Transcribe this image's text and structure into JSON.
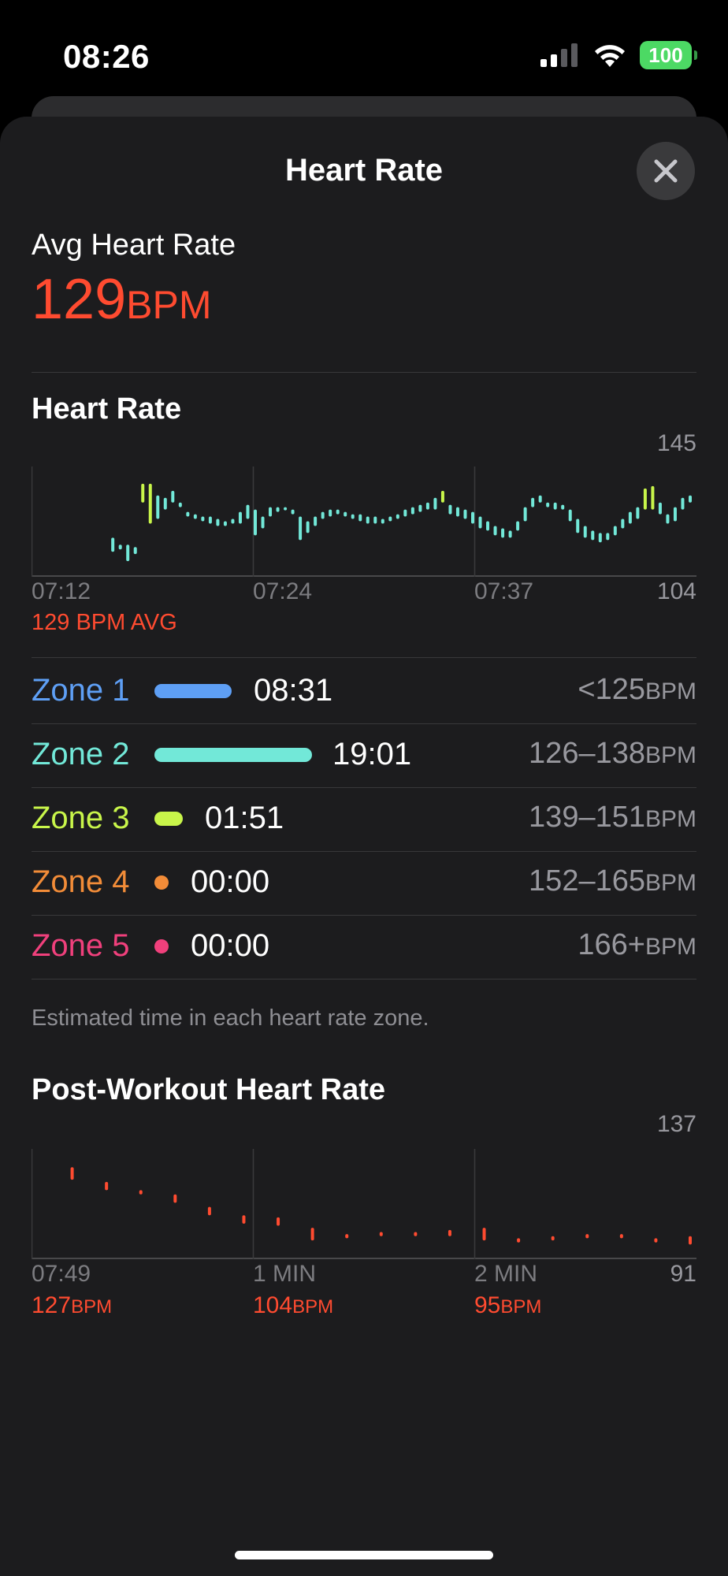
{
  "status": {
    "time": "08:26",
    "battery": "100",
    "signal_icon": "cellular-signal-icon",
    "wifi_icon": "wifi-icon"
  },
  "sheet": {
    "title": "Heart Rate",
    "close_icon": "close-icon"
  },
  "summary": {
    "label": "Avg Heart Rate",
    "value": "129",
    "unit": "BPM"
  },
  "heart_rate_section": {
    "title": "Heart Rate",
    "avg_caption": "129 BPM AVG"
  },
  "zones": {
    "items": [
      {
        "name": "Zone 1",
        "time": "08:31",
        "range": "<125",
        "unit": "BPM",
        "color": "#5e9ff5",
        "bar_fraction": 0.45
      },
      {
        "name": "Zone 2",
        "time": "19:01",
        "range": "126–138",
        "unit": "BPM",
        "color": "#72e8d8",
        "bar_fraction": 1.0
      },
      {
        "name": "Zone 3",
        "time": "01:51",
        "range": "139–151",
        "unit": "BPM",
        "color": "#c8f54a",
        "bar_fraction": 0.1
      },
      {
        "name": "Zone 4",
        "time": "00:00",
        "range": "152–165",
        "unit": "BPM",
        "color": "#f28c38",
        "bar_fraction": 0
      },
      {
        "name": "Zone 5",
        "time": "00:00",
        "range": "166+",
        "unit": "BPM",
        "color": "#f0407c",
        "bar_fraction": 0
      }
    ],
    "footnote": "Estimated time in each heart rate zone."
  },
  "post_workout": {
    "title": "Post-Workout Heart Rate",
    "values": [
      {
        "value": "127",
        "unit": "BPM"
      },
      {
        "value": "104",
        "unit": "BPM"
      },
      {
        "value": "95",
        "unit": "BPM"
      }
    ]
  },
  "chart_data": [
    {
      "type": "bar",
      "x_ticks": [
        "07:12",
        "07:24",
        "07:37"
      ],
      "ylim": [
        104,
        145
      ],
      "y_labels": [
        "145",
        "104"
      ],
      "range_bars": [
        {
          "x": 0.2,
          "low": 112,
          "high": 118,
          "color": "#72e8d8"
        },
        {
          "x": 0.22,
          "low": 113,
          "high": 115,
          "color": "#72e8d8"
        },
        {
          "x": 0.24,
          "low": 108,
          "high": 115,
          "color": "#72e8d8"
        },
        {
          "x": 0.26,
          "low": 111,
          "high": 114,
          "color": "#72e8d8"
        },
        {
          "x": 0.28,
          "low": 133,
          "high": 141,
          "color": "#c8f54a"
        },
        {
          "x": 0.3,
          "low": 124,
          "high": 141,
          "color": "#c8f54a"
        },
        {
          "x": 0.32,
          "low": 126,
          "high": 136,
          "color": "#72e8d8"
        },
        {
          "x": 0.34,
          "low": 130,
          "high": 135,
          "color": "#72e8d8"
        },
        {
          "x": 0.36,
          "low": 133,
          "high": 138,
          "color": "#72e8d8"
        },
        {
          "x": 0.38,
          "low": 131,
          "high": 133,
          "color": "#72e8d8"
        },
        {
          "x": 0.4,
          "low": 127,
          "high": 129,
          "color": "#72e8d8"
        },
        {
          "x": 0.42,
          "low": 126,
          "high": 128,
          "color": "#72e8d8"
        },
        {
          "x": 0.44,
          "low": 125,
          "high": 127,
          "color": "#72e8d8"
        },
        {
          "x": 0.46,
          "low": 124,
          "high": 127,
          "color": "#72e8d8"
        },
        {
          "x": 0.48,
          "low": 123,
          "high": 126,
          "color": "#72e8d8"
        },
        {
          "x": 0.5,
          "low": 123,
          "high": 125,
          "color": "#72e8d8"
        },
        {
          "x": 0.52,
          "low": 124,
          "high": 126,
          "color": "#72e8d8"
        },
        {
          "x": 0.54,
          "low": 124,
          "high": 129,
          "color": "#72e8d8"
        },
        {
          "x": 0.56,
          "low": 126,
          "high": 132,
          "color": "#72e8d8"
        },
        {
          "x": 0.58,
          "low": 119,
          "high": 130,
          "color": "#72e8d8"
        },
        {
          "x": 0.6,
          "low": 122,
          "high": 127,
          "color": "#72e8d8"
        },
        {
          "x": 0.62,
          "low": 127,
          "high": 131,
          "color": "#72e8d8"
        },
        {
          "x": 0.64,
          "low": 129,
          "high": 131,
          "color": "#72e8d8"
        },
        {
          "x": 0.66,
          "low": 130,
          "high": 131,
          "color": "#72e8d8"
        },
        {
          "x": 0.68,
          "low": 128,
          "high": 130,
          "color": "#72e8d8"
        },
        {
          "x": 0.7,
          "low": 117,
          "high": 127,
          "color": "#72e8d8"
        },
        {
          "x": 0.72,
          "low": 120,
          "high": 125,
          "color": "#72e8d8"
        },
        {
          "x": 0.74,
          "low": 123,
          "high": 127,
          "color": "#72e8d8"
        },
        {
          "x": 0.76,
          "low": 126,
          "high": 129,
          "color": "#72e8d8"
        },
        {
          "x": 0.78,
          "low": 127,
          "high": 130,
          "color": "#72e8d8"
        },
        {
          "x": 0.8,
          "low": 128,
          "high": 130,
          "color": "#72e8d8"
        },
        {
          "x": 0.82,
          "low": 127,
          "high": 129,
          "color": "#72e8d8"
        },
        {
          "x": 0.84,
          "low": 126,
          "high": 128,
          "color": "#72e8d8"
        },
        {
          "x": 0.86,
          "low": 125,
          "high": 128,
          "color": "#72e8d8"
        },
        {
          "x": 0.88,
          "low": 124,
          "high": 127,
          "color": "#72e8d8"
        },
        {
          "x": 0.9,
          "low": 124,
          "high": 127,
          "color": "#72e8d8"
        },
        {
          "x": 0.92,
          "low": 124,
          "high": 126,
          "color": "#72e8d8"
        },
        {
          "x": 0.94,
          "low": 125,
          "high": 127,
          "color": "#72e8d8"
        },
        {
          "x": 0.96,
          "low": 126,
          "high": 128,
          "color": "#72e8d8"
        },
        {
          "x": 0.98,
          "low": 127,
          "high": 130,
          "color": "#72e8d8"
        },
        {
          "x": 1.0,
          "low": 128,
          "high": 131,
          "color": "#72e8d8"
        },
        {
          "x": 1.02,
          "low": 129,
          "high": 132,
          "color": "#72e8d8"
        },
        {
          "x": 1.04,
          "low": 130,
          "high": 133,
          "color": "#72e8d8"
        },
        {
          "x": 1.06,
          "low": 130,
          "high": 135,
          "color": "#72e8d8"
        },
        {
          "x": 1.08,
          "low": 133,
          "high": 138,
          "color": "#c8f54a"
        },
        {
          "x": 1.1,
          "low": 128,
          "high": 132,
          "color": "#72e8d8"
        },
        {
          "x": 1.12,
          "low": 127,
          "high": 131,
          "color": "#72e8d8"
        },
        {
          "x": 1.14,
          "low": 126,
          "high": 130,
          "color": "#72e8d8"
        },
        {
          "x": 1.16,
          "low": 124,
          "high": 129,
          "color": "#72e8d8"
        },
        {
          "x": 1.18,
          "low": 122,
          "high": 127,
          "color": "#72e8d8"
        },
        {
          "x": 1.2,
          "low": 121,
          "high": 125,
          "color": "#72e8d8"
        },
        {
          "x": 1.22,
          "low": 119,
          "high": 123,
          "color": "#72e8d8"
        },
        {
          "x": 1.24,
          "low": 118,
          "high": 122,
          "color": "#72e8d8"
        },
        {
          "x": 1.26,
          "low": 118,
          "high": 121,
          "color": "#72e8d8"
        },
        {
          "x": 1.28,
          "low": 121,
          "high": 125,
          "color": "#72e8d8"
        },
        {
          "x": 1.3,
          "low": 125,
          "high": 131,
          "color": "#72e8d8"
        },
        {
          "x": 1.32,
          "low": 131,
          "high": 135,
          "color": "#72e8d8"
        },
        {
          "x": 1.34,
          "low": 133,
          "high": 136,
          "color": "#72e8d8"
        },
        {
          "x": 1.36,
          "low": 131,
          "high": 133,
          "color": "#72e8d8"
        },
        {
          "x": 1.38,
          "low": 130,
          "high": 133,
          "color": "#72e8d8"
        },
        {
          "x": 1.4,
          "low": 130,
          "high": 132,
          "color": "#72e8d8"
        },
        {
          "x": 1.42,
          "low": 125,
          "high": 130,
          "color": "#72e8d8"
        },
        {
          "x": 1.44,
          "low": 120,
          "high": 126,
          "color": "#72e8d8"
        },
        {
          "x": 1.46,
          "low": 118,
          "high": 123,
          "color": "#72e8d8"
        },
        {
          "x": 1.48,
          "low": 117,
          "high": 121,
          "color": "#72e8d8"
        },
        {
          "x": 1.5,
          "low": 116,
          "high": 120,
          "color": "#72e8d8"
        },
        {
          "x": 1.52,
          "low": 117,
          "high": 120,
          "color": "#72e8d8"
        },
        {
          "x": 1.54,
          "low": 119,
          "high": 123,
          "color": "#72e8d8"
        },
        {
          "x": 1.56,
          "low": 122,
          "high": 126,
          "color": "#72e8d8"
        },
        {
          "x": 1.58,
          "low": 124,
          "high": 129,
          "color": "#72e8d8"
        },
        {
          "x": 1.6,
          "low": 126,
          "high": 131,
          "color": "#72e8d8"
        },
        {
          "x": 1.62,
          "low": 130,
          "high": 139,
          "color": "#c8f54a"
        },
        {
          "x": 1.64,
          "low": 130,
          "high": 140,
          "color": "#c8f54a"
        },
        {
          "x": 1.66,
          "low": 128,
          "high": 133,
          "color": "#72e8d8"
        },
        {
          "x": 1.68,
          "low": 124,
          "high": 128,
          "color": "#72e8d8"
        },
        {
          "x": 1.7,
          "low": 125,
          "high": 131,
          "color": "#72e8d8"
        },
        {
          "x": 1.72,
          "low": 130,
          "high": 135,
          "color": "#72e8d8"
        },
        {
          "x": 1.74,
          "low": 133,
          "high": 136,
          "color": "#72e8d8"
        }
      ]
    },
    {
      "type": "bar",
      "x_ticks": [
        "07:49",
        "1 MIN",
        "2 MIN"
      ],
      "ylim": [
        91,
        137
      ],
      "y_labels": [
        "137",
        "91"
      ],
      "range_bars": [
        {
          "x": 0.06,
          "low": 126,
          "high": 132,
          "color": "#ff4b30"
        },
        {
          "x": 0.12,
          "low": 121,
          "high": 125,
          "color": "#ff4b30"
        },
        {
          "x": 0.18,
          "low": 119,
          "high": 121,
          "color": "#ff4b30"
        },
        {
          "x": 0.24,
          "low": 115,
          "high": 119,
          "color": "#ff4b30"
        },
        {
          "x": 0.3,
          "low": 109,
          "high": 113,
          "color": "#ff4b30"
        },
        {
          "x": 0.36,
          "low": 105,
          "high": 109,
          "color": "#ff4b30"
        },
        {
          "x": 0.42,
          "low": 104,
          "high": 108,
          "color": "#ff4b30"
        },
        {
          "x": 0.48,
          "low": 97,
          "high": 103,
          "color": "#ff4b30"
        },
        {
          "x": 0.54,
          "low": 98,
          "high": 100,
          "color": "#ff4b30"
        },
        {
          "x": 0.6,
          "low": 99,
          "high": 101,
          "color": "#ff4b30"
        },
        {
          "x": 0.66,
          "low": 99,
          "high": 101,
          "color": "#ff4b30"
        },
        {
          "x": 0.72,
          "low": 99,
          "high": 102,
          "color": "#ff4b30"
        },
        {
          "x": 0.78,
          "low": 97,
          "high": 103,
          "color": "#ff4b30"
        },
        {
          "x": 0.84,
          "low": 96,
          "high": 98,
          "color": "#ff4b30"
        },
        {
          "x": 0.9,
          "low": 97,
          "high": 99,
          "color": "#ff4b30"
        },
        {
          "x": 0.96,
          "low": 98,
          "high": 100,
          "color": "#ff4b30"
        },
        {
          "x": 1.02,
          "low": 98,
          "high": 100,
          "color": "#ff4b30"
        },
        {
          "x": 1.08,
          "low": 96,
          "high": 98,
          "color": "#ff4b30"
        },
        {
          "x": 1.14,
          "low": 95,
          "high": 99,
          "color": "#ff4b30"
        }
      ]
    }
  ]
}
